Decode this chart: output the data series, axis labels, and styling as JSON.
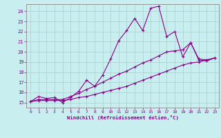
{
  "xlabel": "Windchill (Refroidissement éolien,°C)",
  "background_color": "#c8eef0",
  "line_color": "#880088",
  "grid_color": "#aacccc",
  "xlim": [
    -0.5,
    23.5
  ],
  "ylim": [
    14.5,
    24.7
  ],
  "xticks": [
    0,
    1,
    2,
    3,
    4,
    5,
    6,
    7,
    8,
    9,
    10,
    11,
    12,
    13,
    14,
    15,
    16,
    17,
    18,
    19,
    20,
    21,
    22,
    23
  ],
  "yticks": [
    15,
    16,
    17,
    18,
    19,
    20,
    21,
    22,
    23,
    24
  ],
  "line1_x": [
    0,
    1,
    2,
    3,
    4,
    5,
    6,
    7,
    8,
    9,
    10,
    11,
    12,
    13,
    14,
    15,
    16,
    17,
    18,
    19,
    20,
    21,
    22,
    23
  ],
  "line1_y": [
    15.1,
    15.6,
    15.4,
    15.5,
    15.0,
    15.5,
    16.1,
    17.2,
    16.6,
    17.7,
    19.3,
    21.1,
    22.1,
    23.3,
    22.1,
    24.3,
    24.5,
    21.5,
    22.0,
    19.5,
    20.9,
    19.2,
    19.1,
    19.4
  ],
  "line2_x": [
    0,
    1,
    2,
    3,
    4,
    5,
    6,
    7,
    8,
    9,
    10,
    11,
    12,
    13,
    14,
    15,
    16,
    17,
    18,
    19,
    20,
    21,
    22,
    23
  ],
  "line2_y": [
    15.1,
    15.3,
    15.3,
    15.3,
    15.3,
    15.6,
    15.9,
    16.3,
    16.6,
    17.0,
    17.4,
    17.8,
    18.1,
    18.5,
    18.9,
    19.2,
    19.6,
    20.0,
    20.1,
    20.2,
    20.9,
    19.3,
    19.2,
    19.4
  ],
  "line3_x": [
    0,
    1,
    2,
    3,
    4,
    5,
    6,
    7,
    8,
    9,
    10,
    11,
    12,
    13,
    14,
    15,
    16,
    17,
    18,
    19,
    20,
    21,
    22,
    23
  ],
  "line3_y": [
    15.1,
    15.2,
    15.2,
    15.2,
    15.2,
    15.3,
    15.5,
    15.6,
    15.8,
    16.0,
    16.2,
    16.4,
    16.6,
    16.9,
    17.2,
    17.5,
    17.8,
    18.1,
    18.4,
    18.7,
    18.9,
    19.0,
    19.2,
    19.4
  ]
}
